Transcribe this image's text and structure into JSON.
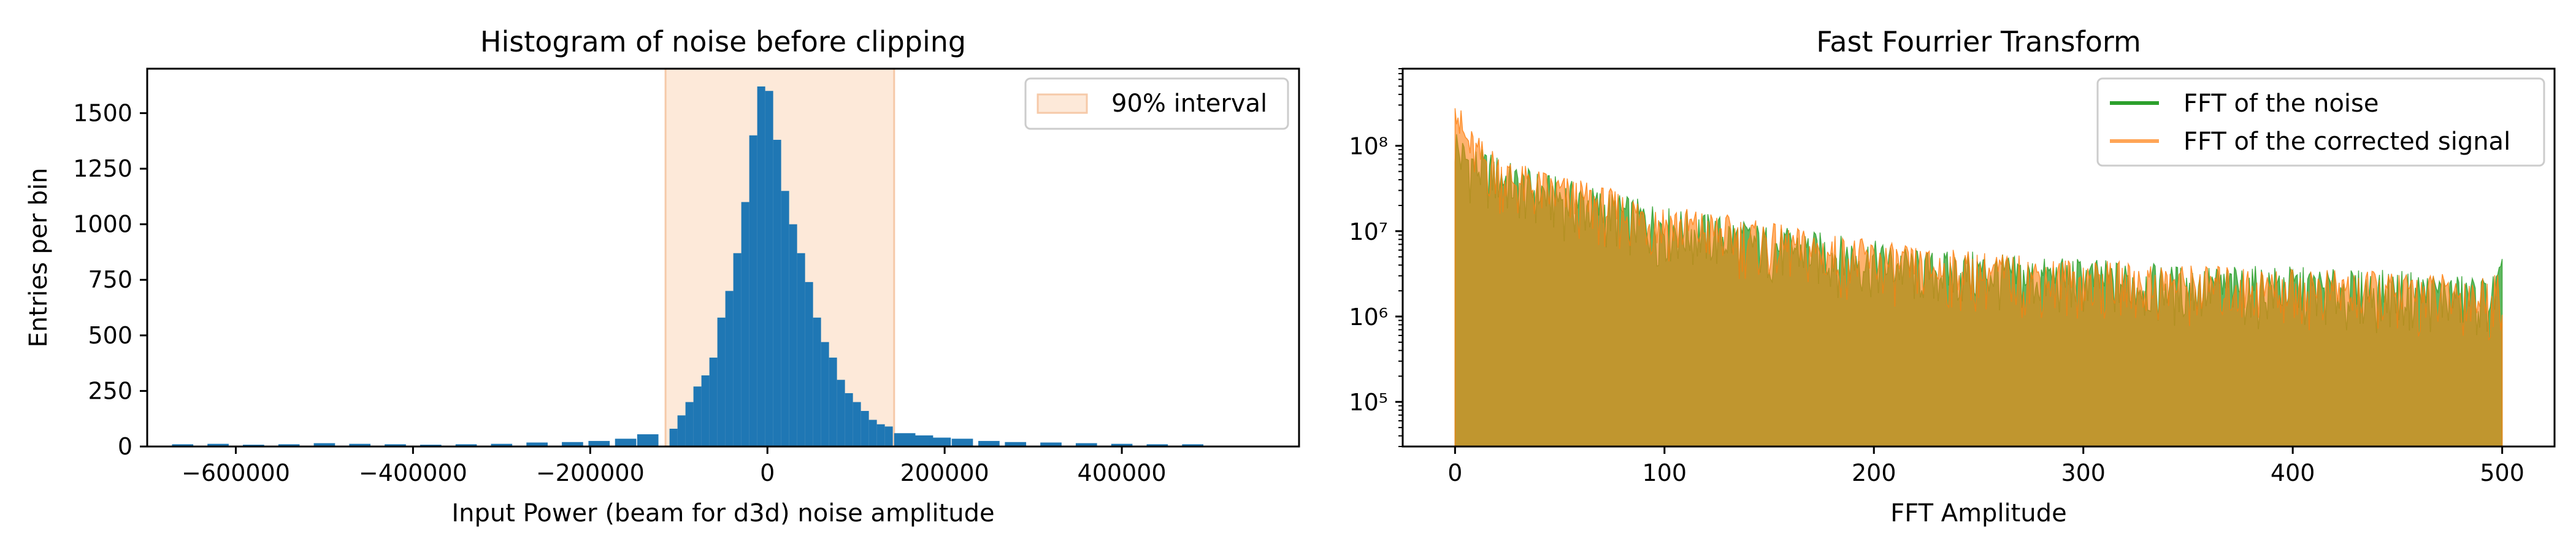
{
  "chart_data": [
    {
      "type": "bar",
      "title": "Histogram of noise before clipping",
      "xlabel": "Input Power (beam for d3d) noise amplitude",
      "ylabel": "Entries per bin",
      "xlim": [
        -700000,
        600000
      ],
      "ylim": [
        0,
        1700
      ],
      "xticks": [
        -600000,
        -400000,
        -200000,
        0,
        200000,
        400000
      ],
      "xtick_labels": [
        "−600000",
        "−400000",
        "−200000",
        "0",
        "200000",
        "400000"
      ],
      "yticks": [
        0,
        250,
        500,
        750,
        1000,
        1250,
        1500
      ],
      "ytick_labels": [
        "0",
        "250",
        "500",
        "750",
        "1000",
        "1250",
        "1500"
      ],
      "legend": {
        "location": "upper right",
        "entries": [
          "90% interval"
        ]
      },
      "interval": {
        "label": "90% interval",
        "x_start": -115000,
        "x_end": 143000,
        "color": "#fde9d9"
      },
      "bar_color": "#1f77b4",
      "bins": {
        "centers": [
          -106000,
          -97000,
          -88000,
          -79000,
          -70000,
          -61000,
          -52000,
          -43000,
          -34000,
          -25000,
          -16000,
          -7000,
          2000,
          11000,
          20000,
          29000,
          38000,
          47000,
          56000,
          65000,
          74000,
          83000,
          92000,
          101000,
          110000,
          119000,
          128000,
          137000
        ],
        "values": [
          80,
          140,
          200,
          270,
          320,
          400,
          580,
          700,
          870,
          1100,
          1400,
          1620,
          1600,
          1380,
          1150,
          1000,
          870,
          740,
          580,
          470,
          400,
          300,
          240,
          200,
          160,
          120,
          100,
          90
        ]
      },
      "tail_bins": {
        "centers": [
          -660000,
          -620000,
          -580000,
          -540000,
          -500000,
          -460000,
          -420000,
          -380000,
          -340000,
          -300000,
          -260000,
          -220000,
          -190000,
          -160000,
          -135000,
          155000,
          175000,
          195000,
          220000,
          250000,
          280000,
          320000,
          360000,
          400000,
          440000,
          480000
        ],
        "values": [
          10,
          12,
          8,
          10,
          15,
          12,
          10,
          8,
          10,
          12,
          18,
          20,
          25,
          35,
          55,
          60,
          50,
          40,
          35,
          25,
          20,
          18,
          15,
          12,
          10,
          10
        ]
      }
    },
    {
      "type": "line",
      "title": "Fast Fourrier Transform",
      "xlabel": "FFT Amplitude",
      "ylabel": "",
      "xlim": [
        -25,
        525
      ],
      "ylim": [
        30000,
        800000000
      ],
      "yscale": "log",
      "xticks": [
        0,
        100,
        200,
        300,
        400,
        500
      ],
      "xtick_labels": [
        "0",
        "100",
        "200",
        "300",
        "400",
        "500"
      ],
      "yticks": [
        100000,
        1000000,
        10000000,
        100000000
      ],
      "ytick_labels": [
        "10⁵",
        "10⁶",
        "10⁷",
        "10⁸"
      ],
      "legend": {
        "location": "upper right",
        "entries": [
          "FFT of the noise",
          "FFT of the corrected signal"
        ]
      },
      "series": [
        {
          "name": "FFT of the noise",
          "color": "#2ca02c",
          "x": [
            0,
            1,
            2,
            5,
            10,
            20,
            30,
            50,
            75,
            100,
            125,
            150,
            175,
            200,
            225,
            250,
            275,
            300,
            325,
            350,
            375,
            400,
            425,
            450,
            475,
            495,
            500
          ],
          "values": [
            100000000,
            85000000,
            70000000,
            60000000,
            50000000,
            40000000,
            30000000,
            22000000,
            15000000,
            10000000,
            8000000,
            6000000,
            5000000,
            4000000,
            3000000,
            3000000,
            2500000,
            2500000,
            2200000,
            2000000,
            2000000,
            2000000,
            1800000,
            1800000,
            1600000,
            1500000,
            2500000
          ]
        },
        {
          "name": "FFT of the corrected signal",
          "color": "#ff7f0e",
          "x": [
            0,
            1,
            2,
            5,
            10,
            20,
            30,
            50,
            75,
            100,
            125,
            150,
            175,
            200,
            225,
            250,
            275,
            300,
            325,
            350,
            375,
            400,
            425,
            450,
            475,
            495,
            500
          ],
          "values": [
            700000000,
            300000000,
            160000000,
            100000000,
            70000000,
            45000000,
            32000000,
            24000000,
            16000000,
            11000000,
            8500000,
            6500000,
            5000000,
            4000000,
            3200000,
            3000000,
            2600000,
            2400000,
            2200000,
            2100000,
            2000000,
            1900000,
            1800000,
            1700000,
            1600000,
            1500000,
            2000000
          ]
        }
      ]
    }
  ]
}
